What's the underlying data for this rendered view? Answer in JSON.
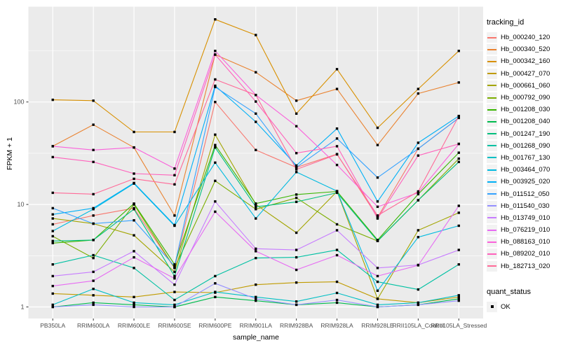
{
  "figure": {
    "background": "#FFFFFF",
    "panel_background": "#EBEBEB",
    "grid_color": "#FFFFFF",
    "tick_color": "#333333",
    "axis_text_color": "#4D4D4D",
    "text_color": "#000000"
  },
  "legend": {
    "color_title": "tracking_id",
    "shape_title": "quant_status",
    "key_background": "#F2F2F2",
    "shape_items": [
      {
        "label": "OK",
        "marker": "black-square"
      }
    ]
  },
  "chart_data": {
    "type": "line",
    "title": "",
    "xlabel": "sample_name",
    "ylabel": "FPKM + 1",
    "y_scale": "log10",
    "y_ticks": [
      1,
      10,
      100
    ],
    "y_minor_gridlines": [
      3.162,
      31.62,
      316.2
    ],
    "ylim": [
      0.77,
      860
    ],
    "grid": true,
    "legend_position": "right",
    "point_marker": "black-square",
    "point_color": "#000000",
    "categories": [
      "PB350LA",
      "RRIM600LA",
      "RRIM600LE",
      "RRIM600SE",
      "RRIM600PE",
      "RRIM901LA",
      "RRIM928BA",
      "RRIM928LA",
      "RRIM928LE",
      "RRII105LA_Control",
      "RRII105LA_Stressed"
    ],
    "series": [
      {
        "name": "Hb_000240_120",
        "color": "#F8766D",
        "values": [
          6.4,
          7.8,
          9.2,
          2.4,
          100,
          34,
          23,
          31,
          7.5,
          35,
          70
        ]
      },
      {
        "name": "Hb_000340_520",
        "color": "#EA8331",
        "values": [
          37,
          60,
          36,
          7.8,
          290,
          195,
          103,
          134,
          38,
          121,
          155
        ]
      },
      {
        "name": "Hb_000342_160",
        "color": "#D89000",
        "values": [
          105,
          103,
          51,
          51,
          640,
          450,
          77,
          209,
          56,
          134,
          315
        ]
      },
      {
        "name": "Hb_000427_070",
        "color": "#C09B00",
        "values": [
          1.35,
          1.3,
          1.25,
          1.4,
          1.38,
          1.65,
          1.73,
          1.76,
          1.2,
          1.1,
          1.25
        ]
      },
      {
        "name": "Hb_000661_060",
        "color": "#A3A500",
        "values": [
          7.3,
          6.5,
          5.0,
          2.2,
          48,
          10,
          5.3,
          13.4,
          1.2,
          5.6,
          8.3
        ]
      },
      {
        "name": "Hb_000792_090",
        "color": "#7CAE00",
        "values": [
          4.9,
          3.0,
          10,
          2.4,
          17,
          9,
          11.6,
          6.4,
          4.4,
          11,
          28
        ]
      },
      {
        "name": "Hb_001208_030",
        "color": "#39B600",
        "values": [
          4.2,
          4.5,
          10.2,
          2.6,
          38,
          10.2,
          12.5,
          13.4,
          4.5,
          12.6,
          32
        ]
      },
      {
        "name": "Hb_001208_040",
        "color": "#00BB4E",
        "values": [
          1.0,
          1.1,
          1.05,
          1.0,
          1.25,
          1.15,
          1.05,
          1.1,
          1.0,
          1.05,
          1.2
        ]
      },
      {
        "name": "Hb_001247_190",
        "color": "#00BF7D",
        "values": [
          4.4,
          4.5,
          9.0,
          2.0,
          36,
          9.5,
          10.6,
          13.0,
          4.4,
          11,
          26
        ]
      },
      {
        "name": "Hb_001268_090",
        "color": "#00C1A3",
        "values": [
          2.6,
          3.2,
          2.4,
          1.17,
          2.0,
          3.0,
          3.05,
          3.6,
          1.76,
          1.48,
          2.6
        ]
      },
      {
        "name": "Hb_001767_130",
        "color": "#00BFC4",
        "values": [
          1.05,
          1.5,
          1.1,
          1.05,
          1.4,
          1.25,
          1.13,
          1.37,
          1.05,
          1.1,
          1.3
        ]
      },
      {
        "name": "Hb_003464_070",
        "color": "#00BAE0",
        "values": [
          5.5,
          9.0,
          16,
          6.2,
          25.6,
          7.3,
          20.7,
          13.5,
          1.44,
          4.8,
          6.2
        ]
      },
      {
        "name": "Hb_003925_020",
        "color": "#00B0F6",
        "values": [
          8.0,
          9.2,
          16.2,
          6.3,
          144,
          64,
          24,
          55,
          10.7,
          40,
          73
        ]
      },
      {
        "name": "Hb_011512_050",
        "color": "#35A2FF",
        "values": [
          9.2,
          6.5,
          7.0,
          2.5,
          140,
          77,
          23,
          44,
          18.3,
          35,
          70
        ]
      },
      {
        "name": "Hb_011540_030",
        "color": "#9590FF",
        "values": [
          1.0,
          1.05,
          1.0,
          1.0,
          1.7,
          1.2,
          1.05,
          1.17,
          1.0,
          1.05,
          1.15
        ]
      },
      {
        "name": "Hb_013749_010",
        "color": "#C77CFF",
        "values": [
          2.0,
          2.2,
          3.5,
          1.65,
          10.7,
          3.7,
          3.6,
          5.6,
          2.4,
          2.57,
          3.6
        ]
      },
      {
        "name": "Hb_076219_010",
        "color": "#E76BF3",
        "values": [
          1.6,
          1.8,
          3.05,
          1.9,
          8.5,
          3.5,
          2.3,
          3.2,
          2.0,
          2.55,
          9.7
        ]
      },
      {
        "name": "Hb_088163_010",
        "color": "#FA62DB",
        "values": [
          37,
          34,
          36,
          22.4,
          315,
          117,
          58,
          24.3,
          9.5,
          13,
          39
        ]
      },
      {
        "name": "Hb_089202_010",
        "color": "#FF62BC",
        "values": [
          29,
          26,
          20,
          19.3,
          290,
          101,
          31.7,
          37,
          7.3,
          30,
          39
        ]
      },
      {
        "name": "Hb_182713_020",
        "color": "#FF6A98",
        "values": [
          13,
          12.6,
          17.8,
          15.7,
          166,
          117,
          22,
          30.8,
          7.8,
          13.4,
          73
        ]
      }
    ]
  }
}
